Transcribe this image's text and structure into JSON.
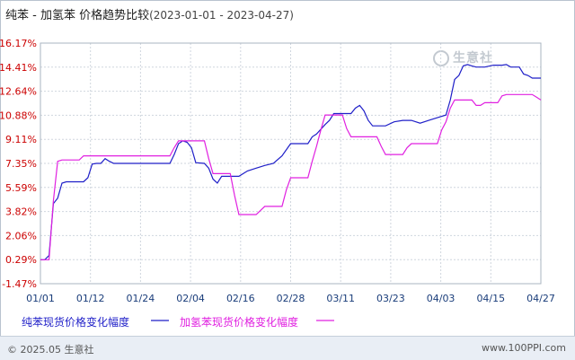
{
  "header": {
    "title": "纯苯 - 加氢苯 价格趋势比较",
    "date_range": "(2023-01-01 - 2023-04-27)"
  },
  "watermark": "生意社",
  "legend": [
    {
      "label": "纯苯现货价格变化幅度",
      "color": "#1f1fc8"
    },
    {
      "label": "加氢苯现货价格变化幅度",
      "color": "#e020e0"
    }
  ],
  "footer": {
    "copyright": "© 2025.05 生意社",
    "site": "www.100PPI.com"
  },
  "chart_data": {
    "type": "line",
    "yticks": [
      "16.17%",
      "14.41%",
      "12.64%",
      "10.88%",
      "9.11%",
      "7.35%",
      "5.59%",
      "3.82%",
      "2.06%",
      "0.29%",
      "-1.47%"
    ],
    "ylim": [
      -1.47,
      16.17
    ],
    "xlabels": [
      "01/01",
      "01/12",
      "01/24",
      "02/04",
      "02/16",
      "02/28",
      "03/11",
      "03/23",
      "04/03",
      "04/15",
      "04/27"
    ],
    "xlim": [
      0,
      116
    ],
    "grid": true,
    "series": [
      {
        "name": "纯苯现货价格变化幅度",
        "color": "#1f1fc8",
        "points": [
          [
            0,
            0.29
          ],
          [
            1,
            0.29
          ],
          [
            2,
            0.6
          ],
          [
            3,
            4.4
          ],
          [
            4,
            4.8
          ],
          [
            5,
            5.9
          ],
          [
            6,
            6.0
          ],
          [
            7,
            6.0
          ],
          [
            8,
            6.0
          ],
          [
            10,
            6.0
          ],
          [
            11,
            6.3
          ],
          [
            12,
            7.3
          ],
          [
            13,
            7.35
          ],
          [
            14,
            7.35
          ],
          [
            15,
            7.7
          ],
          [
            16,
            7.5
          ],
          [
            17,
            7.35
          ],
          [
            18,
            7.35
          ],
          [
            22,
            7.35
          ],
          [
            26,
            7.35
          ],
          [
            30,
            7.35
          ],
          [
            31,
            8.0
          ],
          [
            32,
            8.8
          ],
          [
            33,
            9.0
          ],
          [
            34,
            8.9
          ],
          [
            35,
            8.5
          ],
          [
            36,
            7.4
          ],
          [
            38,
            7.35
          ],
          [
            39,
            7.0
          ],
          [
            40,
            6.2
          ],
          [
            41,
            5.9
          ],
          [
            42,
            6.4
          ],
          [
            44,
            6.4
          ],
          [
            46,
            6.4
          ],
          [
            47,
            6.6
          ],
          [
            48,
            6.8
          ],
          [
            50,
            7.0
          ],
          [
            52,
            7.2
          ],
          [
            54,
            7.35
          ],
          [
            56,
            7.9
          ],
          [
            58,
            8.8
          ],
          [
            62,
            8.8
          ],
          [
            63,
            9.3
          ],
          [
            64,
            9.5
          ],
          [
            66,
            10.2
          ],
          [
            67,
            10.5
          ],
          [
            68,
            11.0
          ],
          [
            69,
            11.0
          ],
          [
            70,
            11.0
          ],
          [
            72,
            11.0
          ],
          [
            73,
            11.4
          ],
          [
            74,
            11.6
          ],
          [
            75,
            11.2
          ],
          [
            76,
            10.5
          ],
          [
            77,
            10.1
          ],
          [
            78,
            10.1
          ],
          [
            80,
            10.1
          ],
          [
            82,
            10.4
          ],
          [
            84,
            10.5
          ],
          [
            86,
            10.5
          ],
          [
            88,
            10.3
          ],
          [
            90,
            10.5
          ],
          [
            92,
            10.7
          ],
          [
            94,
            10.9
          ],
          [
            95,
            12.0
          ],
          [
            96,
            13.5
          ],
          [
            97,
            13.8
          ],
          [
            98,
            14.5
          ],
          [
            99,
            14.6
          ],
          [
            100,
            14.5
          ],
          [
            101,
            14.41
          ],
          [
            103,
            14.41
          ],
          [
            105,
            14.55
          ],
          [
            107,
            14.55
          ],
          [
            108,
            14.6
          ],
          [
            109,
            14.41
          ],
          [
            111,
            14.41
          ],
          [
            112,
            13.9
          ],
          [
            113,
            13.8
          ],
          [
            114,
            13.6
          ],
          [
            115,
            13.6
          ],
          [
            116,
            13.6
          ]
        ]
      },
      {
        "name": "加氢苯现货价格变化幅度",
        "color": "#e020e0",
        "points": [
          [
            0,
            0.29
          ],
          [
            2,
            0.29
          ],
          [
            3,
            4.6
          ],
          [
            4,
            7.5
          ],
          [
            5,
            7.6
          ],
          [
            8,
            7.6
          ],
          [
            9,
            7.6
          ],
          [
            10,
            7.9
          ],
          [
            12,
            7.9
          ],
          [
            14,
            7.9
          ],
          [
            16,
            7.9
          ],
          [
            18,
            7.9
          ],
          [
            20,
            7.9
          ],
          [
            24,
            7.9
          ],
          [
            28,
            7.9
          ],
          [
            30,
            7.9
          ],
          [
            31,
            8.5
          ],
          [
            32,
            9.0
          ],
          [
            34,
            9.0
          ],
          [
            36,
            9.0
          ],
          [
            38,
            9.0
          ],
          [
            39,
            7.7
          ],
          [
            40,
            6.6
          ],
          [
            42,
            6.6
          ],
          [
            44,
            6.6
          ],
          [
            45,
            5.0
          ],
          [
            46,
            3.6
          ],
          [
            48,
            3.6
          ],
          [
            50,
            3.6
          ],
          [
            51,
            3.9
          ],
          [
            52,
            4.2
          ],
          [
            54,
            4.2
          ],
          [
            56,
            4.2
          ],
          [
            57,
            5.4
          ],
          [
            58,
            6.3
          ],
          [
            60,
            6.3
          ],
          [
            62,
            6.3
          ],
          [
            63,
            7.5
          ],
          [
            64,
            8.6
          ],
          [
            65,
            9.8
          ],
          [
            66,
            10.9
          ],
          [
            68,
            10.9
          ],
          [
            70,
            10.9
          ],
          [
            71,
            9.9
          ],
          [
            72,
            9.3
          ],
          [
            74,
            9.3
          ],
          [
            76,
            9.3
          ],
          [
            78,
            9.3
          ],
          [
            79,
            8.6
          ],
          [
            80,
            8.0
          ],
          [
            82,
            8.0
          ],
          [
            84,
            8.0
          ],
          [
            85,
            8.5
          ],
          [
            86,
            8.8
          ],
          [
            88,
            8.8
          ],
          [
            90,
            8.8
          ],
          [
            92,
            8.8
          ],
          [
            93,
            9.8
          ],
          [
            94,
            10.4
          ],
          [
            95,
            11.4
          ],
          [
            96,
            12.0
          ],
          [
            98,
            12.0
          ],
          [
            100,
            12.0
          ],
          [
            101,
            11.6
          ],
          [
            102,
            11.6
          ],
          [
            103,
            11.8
          ],
          [
            104,
            11.8
          ],
          [
            106,
            11.8
          ],
          [
            107,
            12.3
          ],
          [
            108,
            12.4
          ],
          [
            110,
            12.4
          ],
          [
            112,
            12.4
          ],
          [
            114,
            12.4
          ],
          [
            115,
            12.2
          ],
          [
            116,
            12.0
          ]
        ]
      }
    ]
  }
}
